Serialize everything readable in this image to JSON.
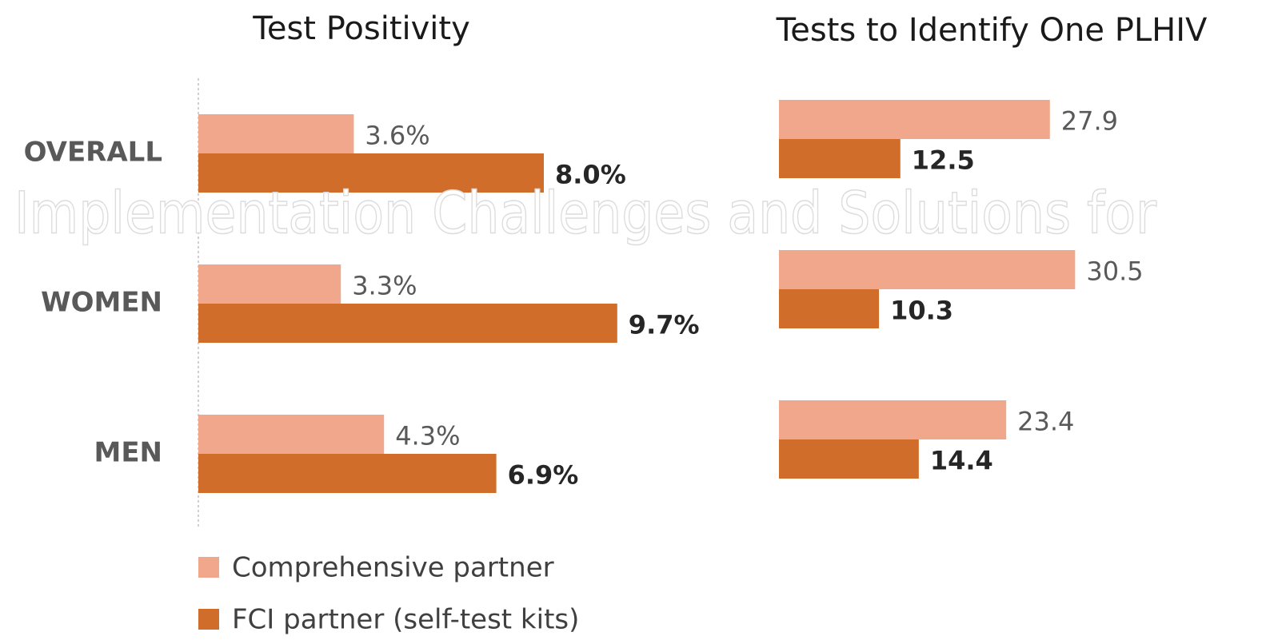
{
  "chart_data": [
    {
      "type": "hbar",
      "title": "Test Positivity",
      "categories": [
        "OVERALL",
        "WOMEN",
        "MEN"
      ],
      "series": [
        {
          "name": "Comprehensive partner",
          "color": "#f0a78b",
          "values": [
            3.6,
            3.3,
            4.3
          ],
          "value_labels": [
            "3.6%",
            "3.3%",
            "4.3%"
          ]
        },
        {
          "name": "FCI partner (self-test kits)",
          "color": "#d06d2b",
          "values": [
            8.0,
            9.7,
            6.9
          ],
          "value_labels": [
            "8.0%",
            "9.7%",
            "6.9%"
          ]
        }
      ],
      "xlim": [
        0,
        10
      ]
    },
    {
      "type": "hbar",
      "title": "Tests to Identify One PLHIV",
      "series": [
        {
          "color": "#f0a78b",
          "values": [
            27.9,
            30.5,
            23.4
          ]
        },
        {
          "color": "#d06d2b",
          "values": [
            12.5,
            10.3,
            14.4
          ]
        }
      ],
      "xlim": [
        0,
        35
      ]
    }
  ],
  "watermark": "Implementation Challenges and Solutions for"
}
